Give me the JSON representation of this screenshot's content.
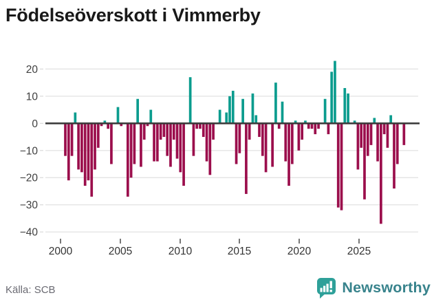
{
  "header": {
    "title": "Födelseöverskott i Vimmerby"
  },
  "footer": {
    "source": "Källa: SCB",
    "logo_text": "Newsworthy"
  },
  "icons": {
    "logo": "newsworthy-speech-bubble-bar-chart-icon"
  },
  "colors": {
    "positive_bar": "#0b9c8e",
    "negative_bar": "#9b0e4c",
    "zero_line": "#3d3d3d",
    "gridline": "#e4e4e4",
    "logo_teal": "#2ea099"
  },
  "chart_data": {
    "type": "bar",
    "title": "Födelseöverskott i Vimmerby",
    "x_ticks": [
      "2000",
      "2005",
      "2010",
      "2015",
      "2020",
      "2025"
    ],
    "y_ticks": [
      "20",
      "10",
      "0",
      "−10",
      "−20",
      "−30",
      "−40"
    ],
    "ylim": [
      -43,
      25
    ],
    "x_range_years": [
      2000,
      2025.75
    ],
    "grid": "horizontal",
    "legend": "none",
    "series_sign_colors": {
      "positive": "#0b9c8e",
      "negative": "#9b0e4c"
    },
    "values": [
      -12,
      -21,
      -12,
      4,
      -17,
      -18,
      -23,
      -21,
      -27,
      -17,
      -9,
      -1,
      1,
      -2,
      -15,
      0,
      6,
      -1,
      0,
      -27,
      -20,
      -15,
      9,
      -16,
      -6,
      -1,
      5,
      -14,
      -14,
      -6,
      -5,
      -12,
      -16,
      -6,
      -13,
      -18,
      -23,
      0,
      17,
      -12,
      -2,
      -2,
      -5,
      -14,
      -19,
      -6,
      0,
      5,
      0,
      4,
      10,
      12,
      -15,
      -11,
      9,
      -26,
      -6,
      11,
      3,
      -5,
      -12,
      -18,
      0,
      -16,
      15,
      -2,
      8,
      -14,
      -23,
      -15,
      1,
      -10,
      -6,
      1,
      -2,
      -2,
      -4,
      -2,
      0,
      9,
      -4,
      19,
      23,
      -31,
      -32,
      13,
      11,
      0,
      1,
      -17,
      -9,
      -28,
      -12,
      -8,
      2,
      -14,
      -37,
      -4,
      -9,
      3,
      -24,
      -15,
      0,
      -8
    ]
  }
}
